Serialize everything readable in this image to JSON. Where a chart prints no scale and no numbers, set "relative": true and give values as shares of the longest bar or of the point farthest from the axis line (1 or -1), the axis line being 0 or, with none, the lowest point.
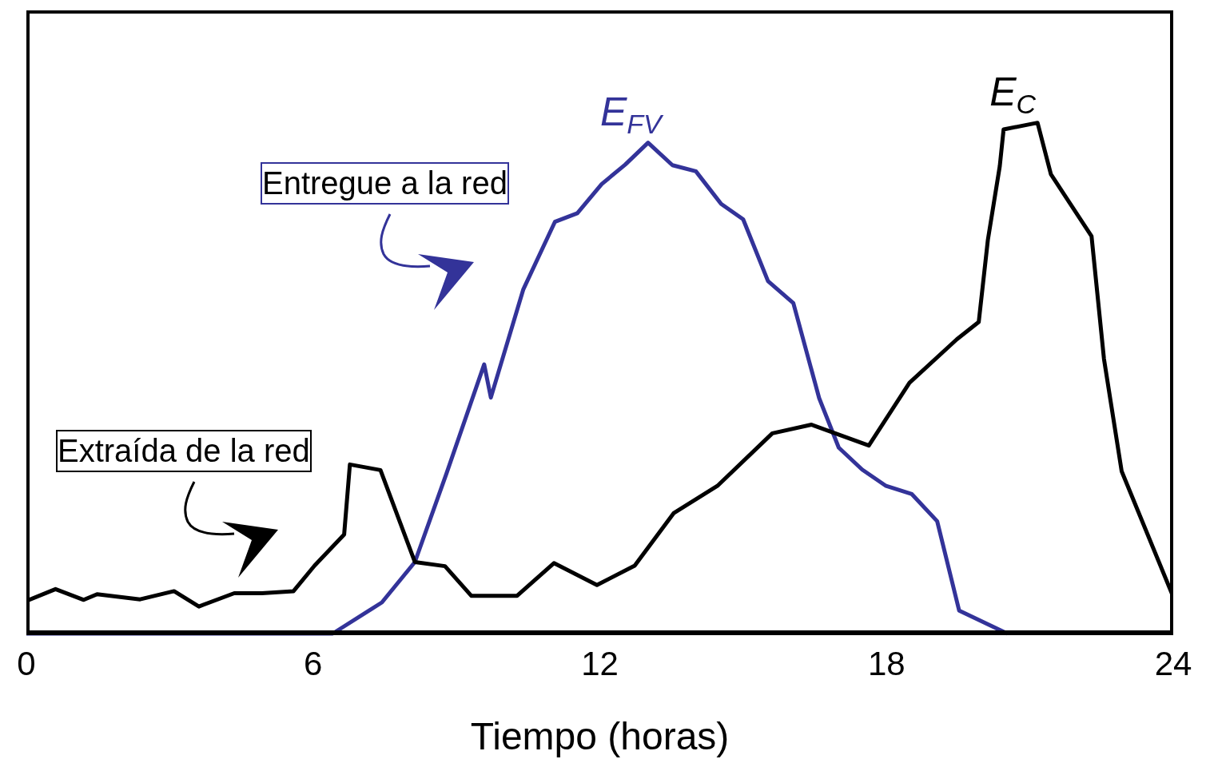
{
  "chart_data": {
    "type": "line",
    "relative": true,
    "xlabel": "Tiempo (horas)",
    "xlim": [
      0,
      24
    ],
    "xticks": [
      0,
      6,
      12,
      18,
      24
    ],
    "marker": "none",
    "line_style": "solid",
    "annotations": [
      "Entregue a la red",
      "Extraída de la red"
    ],
    "series": [
      {
        "name": "E$_{FV}$",
        "color": "#333399",
        "x": [
          0,
          6.41,
          7.44,
          8.13,
          8.79,
          9.58,
          9.72,
          10.4,
          11.06,
          11.53,
          12.04,
          12.53,
          13.01,
          13.52,
          14.01,
          14.54,
          15,
          15.52,
          16.05,
          16.59,
          17,
          17.49,
          17.99,
          18.53,
          19.06,
          19.52,
          20.53
        ],
        "values": [
          0,
          0,
          0.061,
          0.14,
          0.313,
          0.527,
          0.462,
          0.674,
          0.806,
          0.823,
          0.88,
          0.918,
          0.961,
          0.917,
          0.905,
          0.841,
          0.811,
          0.69,
          0.647,
          0.461,
          0.364,
          0.321,
          0.289,
          0.273,
          0.22,
          0.045,
          0
        ]
      },
      {
        "name": "E$_{C}$",
        "color": "#000000",
        "x": [
          0,
          0.61,
          1.2,
          1.48,
          2.38,
          3.09,
          3.61,
          4.35,
          4.93,
          5.59,
          6.03,
          6.65,
          6.77,
          7.41,
          8.13,
          8.76,
          9.31,
          10.27,
          11.04,
          11.94,
          12.73,
          13.55,
          14.46,
          15.61,
          16.43,
          17.63,
          18.48,
          19.47,
          19.93,
          20.12,
          20.37,
          20.45,
          21.16,
          21.44,
          22.29,
          22.55,
          22.92,
          24
        ],
        "values": [
          0.064,
          0.087,
          0.066,
          0.077,
          0.067,
          0.083,
          0.053,
          0.079,
          0.079,
          0.083,
          0.133,
          0.194,
          0.331,
          0.32,
          0.14,
          0.132,
          0.074,
          0.074,
          0.138,
          0.095,
          0.133,
          0.236,
          0.289,
          0.392,
          0.409,
          0.368,
          0.491,
          0.576,
          0.61,
          0.77,
          0.915,
          0.987,
          1,
          0.899,
          0.778,
          0.538,
          0.318,
          0.072
        ]
      }
    ]
  }
}
